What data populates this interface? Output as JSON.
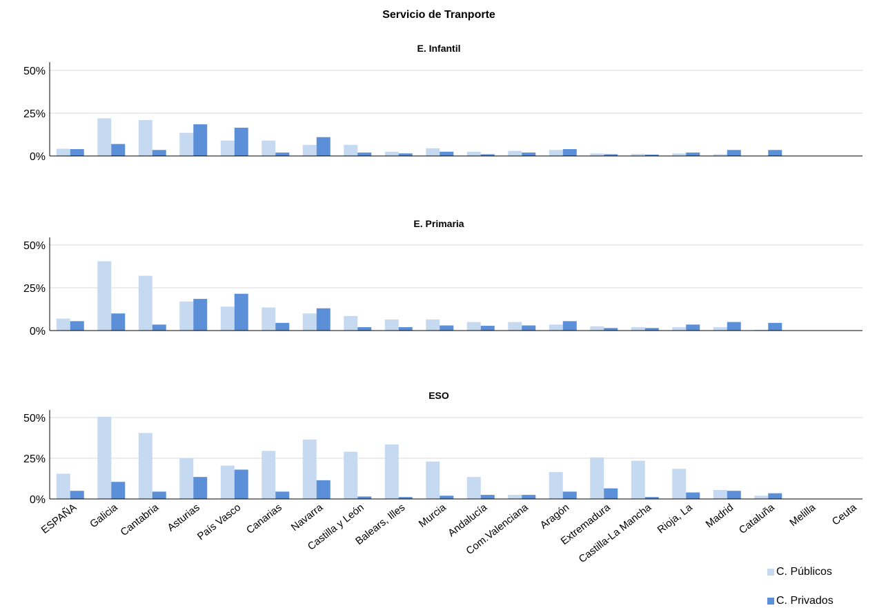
{
  "chart_data": {
    "type": "bar",
    "title": "Servicio de Tranporte",
    "categories": [
      "ESPAÑA",
      "Galicia",
      "Cantabria",
      "Asturias",
      "País Vasco",
      "Canarias",
      "Navarra",
      "Castilla y León",
      "Balears, Illes",
      "Murcia",
      "Andalucía",
      "Com.Valenciana",
      "Aragón",
      "Extremadura",
      "Castilla-La Mancha",
      "Rioja, La",
      "Madrid",
      "Cataluña",
      "Melilla",
      "Ceuta"
    ],
    "legend": [
      {
        "name": "C. Públicos",
        "color": "#c5d9f1"
      },
      {
        "name": "C. Privados",
        "color": "#5b8fd8"
      }
    ],
    "legend_position": "bottom-right",
    "yticks": [
      "0%",
      "25%",
      "50%"
    ],
    "ylim": [
      0,
      50
    ],
    "grid": true,
    "panels": [
      {
        "title": "E. Infantil",
        "series": [
          {
            "name": "C. Públicos",
            "values": [
              4.2,
              22,
              21,
              13.5,
              9,
              9,
              6.5,
              6.5,
              2.5,
              4.5,
              2.5,
              3,
              3.5,
              1.5,
              1.2,
              1.5,
              1,
              0,
              0,
              0
            ]
          },
          {
            "name": "C. Privados",
            "values": [
              4,
              7,
              3.5,
              18.5,
              16.5,
              2,
              11,
              2,
              1.5,
              2.5,
              1,
              2,
              4,
              1,
              0.8,
              2,
              3.5,
              3.5,
              0,
              0
            ]
          }
        ]
      },
      {
        "title": "E. Primaria",
        "series": [
          {
            "name": "C. Públicos",
            "values": [
              7,
              40.5,
              32,
              17,
              14,
              13.5,
              10,
              8.5,
              6.5,
              6.5,
              5,
              5,
              3.5,
              2.5,
              2,
              2,
              2,
              0.5,
              0,
              0
            ]
          },
          {
            "name": "C. Privados",
            "values": [
              5.5,
              10,
              3.5,
              18.5,
              21.5,
              4.5,
              13,
              2,
              2,
              3,
              2.8,
              3,
              5.5,
              1.5,
              1.5,
              3.5,
              5,
              4.5,
              0,
              0
            ]
          }
        ]
      },
      {
        "title": "ESO",
        "series": [
          {
            "name": "C. Públicos",
            "values": [
              15.5,
              50.5,
              40.5,
              25,
              20.5,
              29.5,
              36.5,
              29,
              33.5,
              23,
              13.5,
              2.5,
              16.5,
              25.5,
              23.5,
              18.5,
              5.5,
              2,
              0,
              0
            ]
          },
          {
            "name": "C. Privados",
            "values": [
              5,
              10.5,
              4.5,
              13.5,
              18,
              4.5,
              11.5,
              1.5,
              1.2,
              2,
              2.5,
              2.5,
              4.5,
              6.5,
              1.2,
              4,
              5,
              3.5,
              0,
              0
            ]
          }
        ]
      }
    ]
  }
}
